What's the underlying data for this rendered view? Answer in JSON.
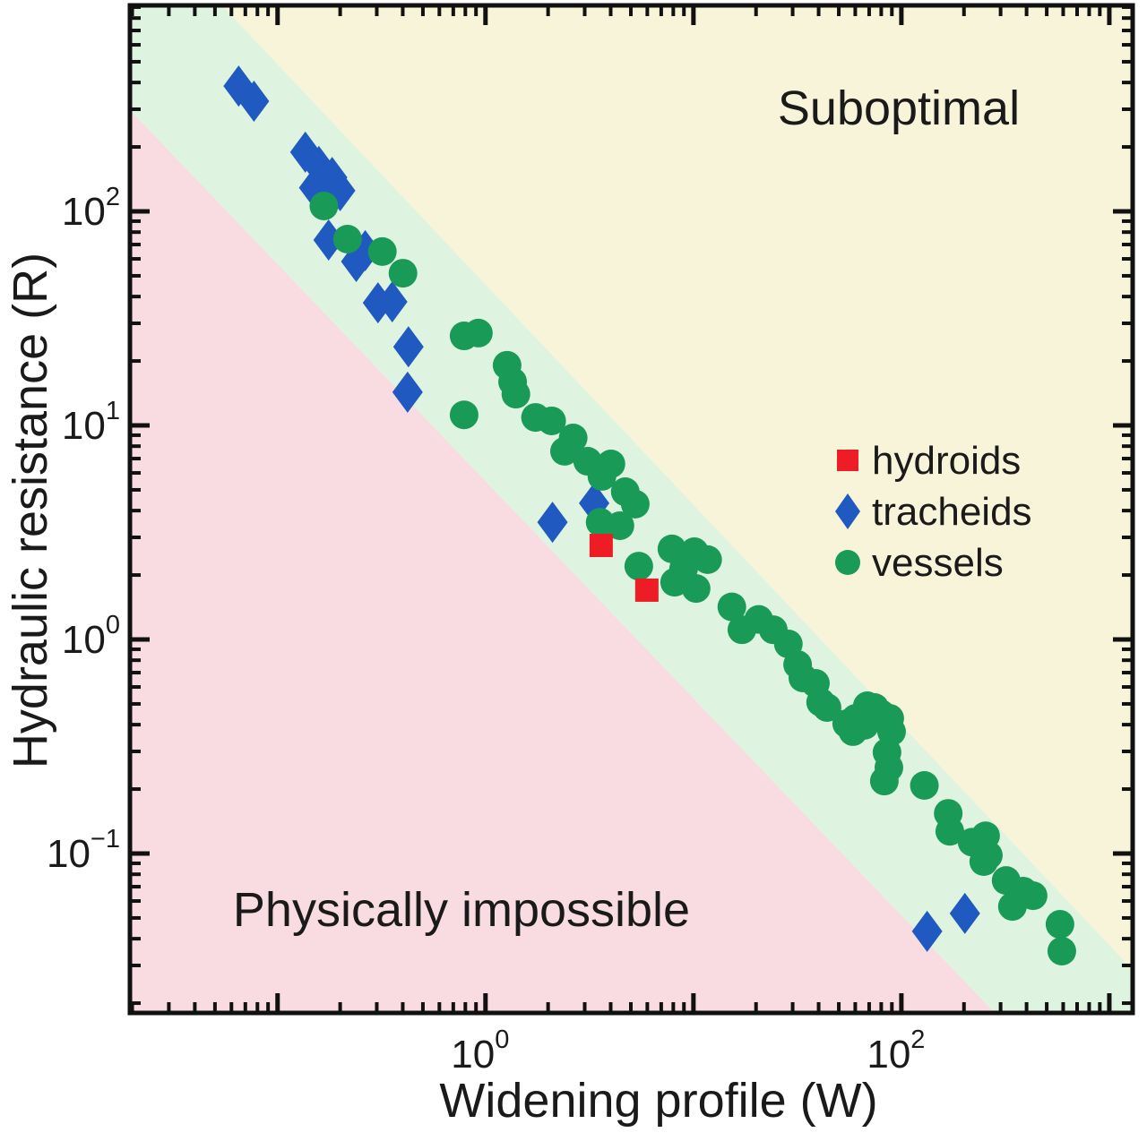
{
  "chart_data": {
    "type": "scatter",
    "title": "",
    "xlabel": "Widening profile (W)",
    "ylabel": "Hydraulic resistance (R)",
    "x_scale": "log",
    "y_scale": "log",
    "xlim": [
      0.0195,
      1295
    ],
    "ylim": [
      0.018,
      917
    ],
    "grid": false,
    "x_major_ticks": [
      {
        "value": 0.1,
        "exp": null
      },
      {
        "value": 1,
        "exp": "0"
      },
      {
        "value": 10,
        "exp": null
      },
      {
        "value": 100,
        "exp": "2"
      },
      {
        "value": 1000,
        "exp": null
      }
    ],
    "y_major_ticks": [
      {
        "value": 100,
        "exp": "2"
      },
      {
        "value": 10,
        "exp": "1"
      },
      {
        "value": 1,
        "exp": "0"
      },
      {
        "value": 0.1,
        "exp": "−1"
      }
    ],
    "tick_label_base": "10",
    "regions": {
      "suboptimal_label": "Suboptimal",
      "impossible_label": "Physically impossible",
      "band_upper": [
        [
          0.054,
          916
        ],
        [
          1295,
          0.0286
        ]
      ],
      "band_lower": [
        [
          0.0195,
          297
        ],
        [
          281,
          0.018
        ]
      ],
      "colors": {
        "suboptimal": "#f8f4da",
        "optimal_band": "#def3e0",
        "impossible": "#f9dbe2"
      }
    },
    "legend": {
      "position": "middle-right"
    },
    "series": [
      {
        "name": "hydroids",
        "marker": "square",
        "color": "#ee1c24",
        "z": 3,
        "points": [
          [
            3.6,
            2.75
          ],
          [
            5.97,
            1.7
          ]
        ]
      },
      {
        "name": "tracheids",
        "marker": "diamond",
        "color": "#2059c0",
        "z": 1,
        "points": [
          [
            0.065,
            385
          ],
          [
            0.077,
            327
          ],
          [
            0.136,
            189
          ],
          [
            0.158,
            162
          ],
          [
            0.183,
            144
          ],
          [
            0.15,
            129
          ],
          [
            0.2,
            125
          ],
          [
            0.176,
            73.5
          ],
          [
            0.264,
            65.5
          ],
          [
            0.239,
            58.3
          ],
          [
            0.304,
            37.4
          ],
          [
            0.356,
            37.8
          ],
          [
            0.426,
            23.3
          ],
          [
            0.422,
            14.3
          ],
          [
            2.1,
            3.53
          ],
          [
            3.33,
            4.33
          ],
          [
            133,
            0.0433
          ],
          [
            202,
            0.0525
          ]
        ]
      },
      {
        "name": "vessels",
        "marker": "circle",
        "color": "#199a56",
        "z": 2,
        "points": [
          [
            0.167,
            106
          ],
          [
            0.217,
            74.2
          ],
          [
            0.319,
            64.9
          ],
          [
            0.401,
            51.4
          ],
          [
            0.789,
            26.2
          ],
          [
            0.924,
            27
          ],
          [
            1.27,
            19.1
          ],
          [
            1.35,
            16
          ],
          [
            1.4,
            14
          ],
          [
            0.789,
            11.2
          ],
          [
            1.74,
            10.9
          ],
          [
            2.08,
            10.5
          ],
          [
            2.64,
            8.74
          ],
          [
            2.4,
            7.57
          ],
          [
            3.1,
            6.8
          ],
          [
            4.01,
            6.61
          ],
          [
            3.63,
            5.78
          ],
          [
            4.7,
            4.9
          ],
          [
            5.25,
            4.29
          ],
          [
            3.56,
            3.53
          ],
          [
            4.43,
            3.4
          ],
          [
            5.46,
            2.2
          ],
          [
            7.88,
            2.65
          ],
          [
            10.1,
            2.57
          ],
          [
            11.7,
            2.36
          ],
          [
            8.97,
            2.14
          ],
          [
            8.12,
            1.85
          ],
          [
            10.3,
            1.73
          ],
          [
            15.3,
            1.42
          ],
          [
            20.6,
            1.24
          ],
          [
            17.1,
            1.11
          ],
          [
            24.2,
            1.11
          ],
          [
            28.6,
            0.953
          ],
          [
            31.7,
            0.763
          ],
          [
            33.6,
            0.661
          ],
          [
            38.6,
            0.624
          ],
          [
            40.9,
            0.509
          ],
          [
            43.9,
            0.481
          ],
          [
            68.6,
            0.49
          ],
          [
            74.3,
            0.481
          ],
          [
            60.3,
            0.428
          ],
          [
            79.6,
            0.45
          ],
          [
            87.9,
            0.428
          ],
          [
            54.6,
            0.404
          ],
          [
            66.5,
            0.397
          ],
          [
            58.5,
            0.371
          ],
          [
            89.7,
            0.371
          ],
          [
            85.3,
            0.297
          ],
          [
            87.1,
            0.252
          ],
          [
            82.8,
            0.218
          ],
          [
            129,
            0.208
          ],
          [
            168,
            0.154
          ],
          [
            171,
            0.127
          ],
          [
            254,
            0.121
          ],
          [
            219,
            0.113
          ],
          [
            262,
            0.098
          ],
          [
            249,
            0.0917
          ],
          [
            319,
            0.0748
          ],
          [
            386,
            0.0667
          ],
          [
            430,
            0.0635
          ],
          [
            342,
            0.0566
          ],
          [
            579,
            0.0467
          ],
          [
            591,
            0.035
          ]
        ]
      }
    ]
  }
}
